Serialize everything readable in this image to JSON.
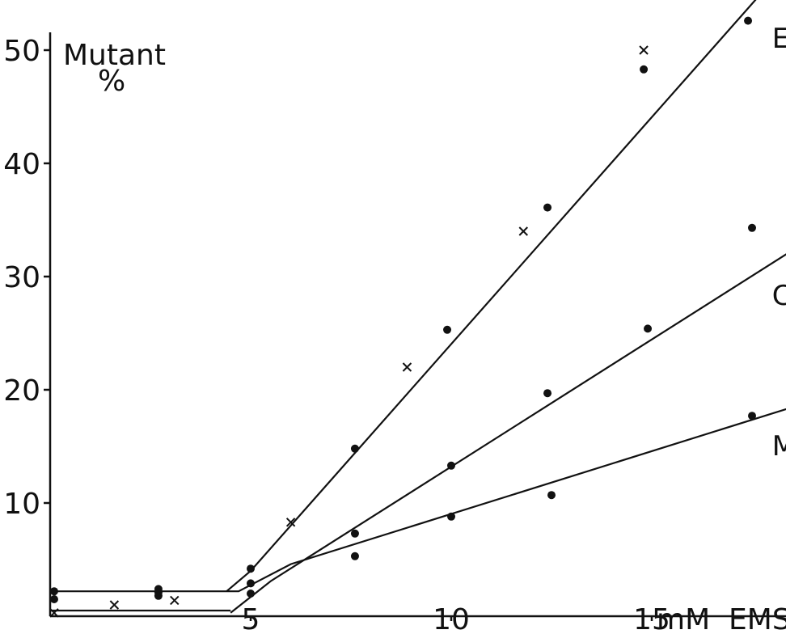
{
  "chart_data": {
    "type": "scatter",
    "ylabel_line1": "Mutant",
    "ylabel_line2": "%",
    "xlabel": "mM  EMS",
    "xlim": [
      0,
      20
    ],
    "ylim": [
      0,
      52
    ],
    "x_ticks": [
      {
        "value": 5,
        "label": "5"
      },
      {
        "value": 10,
        "label": "10"
      },
      {
        "value": 15,
        "label": "15"
      }
    ],
    "y_ticks": [
      {
        "value": 10,
        "label": "10"
      },
      {
        "value": 20,
        "label": "20"
      },
      {
        "value": 30,
        "label": "30"
      },
      {
        "value": 40,
        "label": "40"
      },
      {
        "value": 50,
        "label": "50"
      }
    ],
    "ink": "#111111",
    "series": [
      {
        "label": "EL",
        "line": [
          [
            4.4,
            2.2
          ],
          [
            5.0,
            4.0
          ],
          [
            17.6,
            54.5
          ]
        ],
        "label_at": [
          18.0,
          50.2
        ]
      },
      {
        "label": "Chl",
        "line": [
          [
            4.5,
            0.3
          ],
          [
            5.5,
            3.1
          ],
          [
            18.9,
            33.2
          ]
        ],
        "label_at": [
          18.0,
          27.5
        ]
      },
      {
        "label": "MEL",
        "line": [
          [
            0,
            2.2
          ],
          [
            4.7,
            2.2
          ],
          [
            6.0,
            4.6
          ],
          [
            18.9,
            18.9
          ]
        ],
        "label_at": [
          18.0,
          14.2
        ]
      }
    ],
    "baseline_line": [
      [
        0,
        0.5
      ],
      [
        4.5,
        0.5
      ]
    ],
    "dots": [
      [
        0.1,
        2.2
      ],
      [
        0.1,
        1.5
      ],
      [
        2.7,
        2.4
      ],
      [
        2.7,
        2.1
      ],
      [
        2.7,
        1.8
      ],
      [
        5.0,
        4.2
      ],
      [
        5.0,
        2.9
      ],
      [
        5.0,
        2.0
      ],
      [
        7.6,
        14.8
      ],
      [
        7.6,
        7.3
      ],
      [
        7.6,
        5.3
      ],
      [
        9.9,
        25.3
      ],
      [
        10.0,
        13.3
      ],
      [
        10.0,
        8.8
      ],
      [
        12.4,
        36.1
      ],
      [
        12.4,
        19.7
      ],
      [
        12.5,
        10.7
      ],
      [
        14.8,
        48.3
      ],
      [
        14.9,
        25.4
      ],
      [
        17.4,
        52.6
      ],
      [
        17.5,
        34.3
      ],
      [
        17.5,
        17.7
      ]
    ],
    "crosses": [
      [
        0.1,
        0.3
      ],
      [
        1.6,
        1.0
      ],
      [
        3.1,
        1.4
      ],
      [
        6.0,
        8.3
      ],
      [
        8.9,
        22.0
      ],
      [
        11.8,
        34.0
      ],
      [
        14.8,
        50.0
      ]
    ]
  }
}
